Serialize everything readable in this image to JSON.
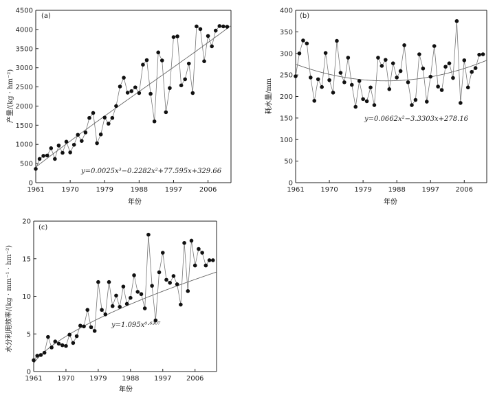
{
  "chart_data": [
    {
      "type": "scatter",
      "panel_label": "(a)",
      "xlabel": "年份",
      "ylabel": "产量/(kg · hm⁻²)",
      "xlim": [
        1961,
        2012
      ],
      "ylim": [
        0,
        4500
      ],
      "xticks": [
        1961,
        1970,
        1979,
        1988,
        1997,
        2006
      ],
      "yticks": [
        0,
        500,
        1000,
        1500,
        2000,
        2500,
        3000,
        3500,
        4000,
        4500
      ],
      "equation": "y=0.0025x³−0.2282x²+77.595x+329.66",
      "trend": {
        "kind": "poly3",
        "coef": [
          0.0025,
          -0.2282,
          77.595,
          329.66
        ]
      },
      "series": [
        {
          "name": "产量",
          "x": [
            1961,
            1962,
            1963,
            1964,
            1965,
            1966,
            1967,
            1968,
            1969,
            1970,
            1971,
            1972,
            1973,
            1974,
            1975,
            1976,
            1977,
            1978,
            1979,
            1980,
            1981,
            1982,
            1983,
            1984,
            1985,
            1986,
            1987,
            1988,
            1989,
            1990,
            1991,
            1992,
            1993,
            1994,
            1995,
            1996,
            1997,
            1998,
            1999,
            2000,
            2001,
            2002,
            2003,
            2004,
            2005,
            2006,
            2007,
            2008,
            2009,
            2010,
            2011
          ],
          "values": [
            360,
            620,
            700,
            710,
            900,
            620,
            970,
            780,
            1070,
            790,
            990,
            1250,
            1090,
            1310,
            1690,
            1820,
            1030,
            1260,
            1700,
            1540,
            1690,
            2000,
            2510,
            2740,
            2350,
            2390,
            2490,
            2340,
            3080,
            3200,
            2320,
            1600,
            3400,
            3190,
            1840,
            2470,
            3800,
            3820,
            2540,
            2700,
            3110,
            2340,
            4080,
            4010,
            3170,
            3830,
            3560,
            3970,
            4090,
            4080,
            4070
          ]
        }
      ]
    },
    {
      "type": "scatter",
      "panel_label": "(b)",
      "xlabel": "年份",
      "ylabel": "耗水量/mm",
      "xlim": [
        1961,
        2012
      ],
      "ylim": [
        0,
        400
      ],
      "xticks": [
        1961,
        1970,
        1979,
        1988,
        1997,
        2006
      ],
      "yticks": [
        0,
        50,
        100,
        150,
        200,
        250,
        300,
        350,
        400
      ],
      "equation": "y=0.0662x²−3.3303x+278.16",
      "trend": {
        "kind": "poly2",
        "coef": [
          0.0662,
          -3.3303,
          278.16
        ]
      },
      "series": [
        {
          "name": "耗水量",
          "x": [
            1961,
            1962,
            1963,
            1964,
            1965,
            1966,
            1967,
            1968,
            1969,
            1970,
            1971,
            1972,
            1973,
            1974,
            1975,
            1976,
            1977,
            1978,
            1979,
            1980,
            1981,
            1982,
            1983,
            1984,
            1985,
            1986,
            1987,
            1988,
            1989,
            1990,
            1991,
            1992,
            1993,
            1994,
            1995,
            1996,
            1997,
            1998,
            1999,
            2000,
            2001,
            2002,
            2003,
            2004,
            2005,
            2006,
            2007,
            2008,
            2009,
            2010,
            2011
          ],
          "values": [
            247,
            300,
            330,
            323,
            244,
            190,
            240,
            222,
            301,
            238,
            209,
            329,
            255,
            233,
            290,
            227,
            176,
            236,
            194,
            189,
            221,
            180,
            290,
            271,
            285,
            217,
            277,
            244,
            259,
            319,
            233,
            180,
            192,
            298,
            265,
            188,
            246,
            317,
            223,
            215,
            269,
            277,
            243,
            375,
            185,
            284,
            221,
            257,
            266,
            297,
            298
          ]
        }
      ]
    },
    {
      "type": "scatter",
      "panel_label": "(c)",
      "xlabel": "年份",
      "ylabel": "水分利用效率/(kg · mm⁻¹ · hm⁻²)",
      "xlim": [
        1961,
        2012
      ],
      "ylim": [
        0,
        20
      ],
      "xticks": [
        1961,
        1970,
        1979,
        1988,
        1997,
        2006
      ],
      "yticks": [
        0,
        5,
        10,
        15,
        20
      ],
      "equation": "y=1.095x⁰·⁶³⁰⁷",
      "trend": {
        "kind": "power",
        "coef": [
          1.095,
          0.6307
        ]
      },
      "series": [
        {
          "name": "水分利用效率",
          "x": [
            1961,
            1962,
            1963,
            1964,
            1965,
            1966,
            1967,
            1968,
            1969,
            1970,
            1971,
            1972,
            1973,
            1974,
            1975,
            1976,
            1977,
            1978,
            1979,
            1980,
            1981,
            1982,
            1983,
            1984,
            1985,
            1986,
            1987,
            1988,
            1989,
            1990,
            1991,
            1992,
            1993,
            1994,
            1995,
            1996,
            1997,
            1998,
            1999,
            2000,
            2001,
            2002,
            2003,
            2004,
            2005,
            2006,
            2007,
            2008,
            2009,
            2010,
            2011
          ],
          "values": [
            1.5,
            2.1,
            2.2,
            2.5,
            4.6,
            3.2,
            4.0,
            3.7,
            3.5,
            3.4,
            4.9,
            3.8,
            4.7,
            6.1,
            6.0,
            8.2,
            5.9,
            5.4,
            11.9,
            8.2,
            7.6,
            11.9,
            8.7,
            10.1,
            8.6,
            11.3,
            9.0,
            9.8,
            12.8,
            10.6,
            10.3,
            8.4,
            18.2,
            11.4,
            6.8,
            13.2,
            15.8,
            12.2,
            11.8,
            12.7,
            11.6,
            8.9,
            17.1,
            10.7,
            17.4,
            14.1,
            16.3,
            15.8,
            14.1,
            14.8,
            14.8
          ]
        }
      ]
    }
  ]
}
